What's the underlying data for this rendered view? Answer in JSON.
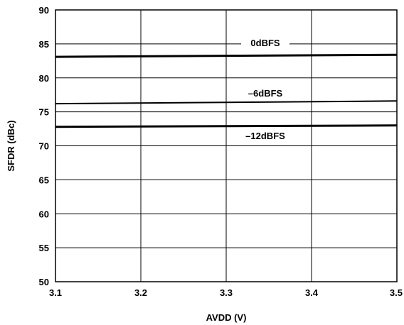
{
  "chart_data": {
    "type": "line",
    "xlabel": "AVDD (V)",
    "ylabel": "SFDR (dBc)",
    "xlim": [
      3.1,
      3.5
    ],
    "ylim": [
      50,
      90
    ],
    "x_ticks": [
      "3.1",
      "3.2",
      "3.3",
      "3.4",
      "3.5"
    ],
    "y_ticks": [
      "50",
      "55",
      "60",
      "65",
      "70",
      "75",
      "80",
      "85",
      "90"
    ],
    "grid": true,
    "series": [
      {
        "name": "0dBFS",
        "x": [
          3.1,
          3.5
        ],
        "y": [
          83.1,
          83.4
        ]
      },
      {
        "name": "–6dBFS",
        "x": [
          3.1,
          3.5
        ],
        "y": [
          76.2,
          76.6
        ]
      },
      {
        "name": "–12dBFS",
        "x": [
          3.1,
          3.5
        ],
        "y": [
          72.8,
          73.0
        ]
      }
    ]
  }
}
